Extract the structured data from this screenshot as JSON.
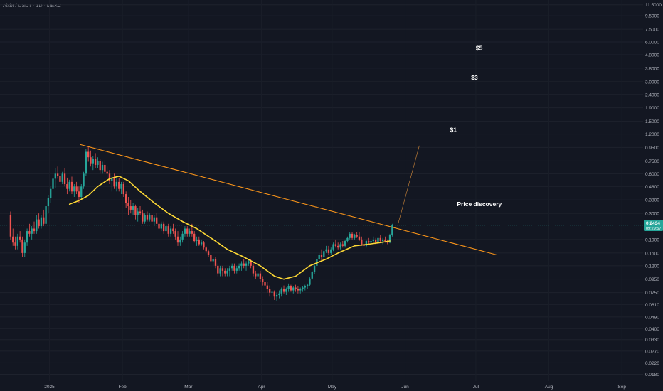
{
  "header": {
    "symbol_line": "Aixbt / USDT · 1D · MEXC"
  },
  "colors": {
    "background": "#131722",
    "up": "#26a69a",
    "down": "#ef5350",
    "trendline": "#f7931a",
    "moving_average": "#fdd835",
    "axis_text": "#b2b5be",
    "price_badge": "#26a69a"
  },
  "price_badge": {
    "price": "0.2434",
    "countdown": "09:29:57"
  },
  "chart_data": {
    "type": "candlestick",
    "y_scale": "log",
    "y_ticks": [
      "11.5000",
      "9.5000",
      "7.5000",
      "6.0000",
      "4.8000",
      "3.8000",
      "3.0000",
      "2.4000",
      "1.9000",
      "1.5000",
      "1.2000",
      "0.9500",
      "0.7500",
      "0.6000",
      "0.4800",
      "0.3800",
      "0.3000",
      "0.1900",
      "0.1500",
      "0.1200",
      "0.0950",
      "0.0750",
      "0.0610",
      "0.0490",
      "0.0400",
      "0.0330",
      "0.0270",
      "0.0220",
      "0.0180"
    ],
    "x_ticks": [
      "2025",
      "Feb",
      "Mar",
      "Apr",
      "May",
      "Jun",
      "Jul",
      "Aug",
      "Sep"
    ],
    "x_range": [
      "2024-12-11",
      "2025-09-10"
    ],
    "y_range": [
      0.016,
      12.5
    ],
    "last_price": 0.2434,
    "annotations": [
      {
        "text": "$5",
        "x": "2025-07-01",
        "y": 5.2
      },
      {
        "text": "$3",
        "x": "2025-06-29",
        "y": 3.1
      },
      {
        "text": "$1",
        "x": "2025-06-20",
        "y": 1.25
      },
      {
        "text": "Price discovery",
        "x": "2025-06-23",
        "y": 0.34
      }
    ],
    "trendline": {
      "start": {
        "x": "2025-01-14",
        "y": 1.0
      },
      "end": {
        "x": "2025-07-10",
        "y": 0.145
      }
    },
    "projection_line": {
      "start": {
        "x": "2025-05-29",
        "y": 0.25
      },
      "end": {
        "x": "2025-06-07",
        "y": 0.98
      }
    },
    "moving_average": [
      [
        "2025-01-09",
        0.352
      ],
      [
        "2025-01-13",
        0.375
      ],
      [
        "2025-01-17",
        0.41
      ],
      [
        "2025-01-21",
        0.48
      ],
      [
        "2025-01-26",
        0.55
      ],
      [
        "2025-01-30",
        0.575
      ],
      [
        "2025-02-03",
        0.53
      ],
      [
        "2025-02-08",
        0.44
      ],
      [
        "2025-02-14",
        0.36
      ],
      [
        "2025-02-20",
        0.3
      ],
      [
        "2025-02-26",
        0.26
      ],
      [
        "2025-03-04",
        0.23
      ],
      [
        "2025-03-11",
        0.19
      ],
      [
        "2025-03-17",
        0.16
      ],
      [
        "2025-03-24",
        0.14
      ],
      [
        "2025-03-31",
        0.12
      ],
      [
        "2025-04-06",
        0.1
      ],
      [
        "2025-04-10",
        0.095
      ],
      [
        "2025-04-15",
        0.1
      ],
      [
        "2025-04-21",
        0.12
      ],
      [
        "2025-04-28",
        0.135
      ],
      [
        "2025-05-03",
        0.15
      ],
      [
        "2025-05-10",
        0.17
      ],
      [
        "2025-05-16",
        0.175
      ],
      [
        "2025-05-21",
        0.18
      ],
      [
        "2025-05-25",
        0.185
      ]
    ],
    "candles": [
      [
        "2024-12-15",
        0.29,
        0.31,
        0.19,
        0.2
      ],
      [
        "2024-12-16",
        0.2,
        0.23,
        0.17,
        0.18
      ],
      [
        "2024-12-17",
        0.18,
        0.2,
        0.16,
        0.17
      ],
      [
        "2024-12-18",
        0.17,
        0.21,
        0.16,
        0.2
      ],
      [
        "2024-12-19",
        0.2,
        0.22,
        0.18,
        0.19
      ],
      [
        "2024-12-20",
        0.19,
        0.2,
        0.14,
        0.15
      ],
      [
        "2024-12-21",
        0.15,
        0.19,
        0.14,
        0.18
      ],
      [
        "2024-12-22",
        0.18,
        0.23,
        0.17,
        0.22
      ],
      [
        "2024-12-23",
        0.22,
        0.25,
        0.2,
        0.21
      ],
      [
        "2024-12-24",
        0.21,
        0.24,
        0.19,
        0.23
      ],
      [
        "2024-12-25",
        0.23,
        0.26,
        0.21,
        0.22
      ],
      [
        "2024-12-26",
        0.22,
        0.29,
        0.21,
        0.27
      ],
      [
        "2024-12-27",
        0.27,
        0.3,
        0.23,
        0.24
      ],
      [
        "2024-12-28",
        0.24,
        0.29,
        0.23,
        0.28
      ],
      [
        "2024-12-29",
        0.28,
        0.32,
        0.24,
        0.25
      ],
      [
        "2024-12-30",
        0.25,
        0.36,
        0.24,
        0.34
      ],
      [
        "2024-12-31",
        0.34,
        0.41,
        0.3,
        0.39
      ],
      [
        "2025-01-01",
        0.39,
        0.48,
        0.36,
        0.46
      ],
      [
        "2025-01-02",
        0.46,
        0.58,
        0.42,
        0.55
      ],
      [
        "2025-01-03",
        0.55,
        0.66,
        0.47,
        0.6
      ],
      [
        "2025-01-04",
        0.6,
        0.68,
        0.55,
        0.58
      ],
      [
        "2025-01-05",
        0.58,
        0.64,
        0.5,
        0.52
      ],
      [
        "2025-01-06",
        0.52,
        0.62,
        0.5,
        0.6
      ],
      [
        "2025-01-07",
        0.6,
        0.66,
        0.48,
        0.5
      ],
      [
        "2025-01-08",
        0.5,
        0.56,
        0.42,
        0.46
      ],
      [
        "2025-01-09",
        0.46,
        0.54,
        0.44,
        0.52
      ],
      [
        "2025-01-10",
        0.52,
        0.57,
        0.42,
        0.44
      ],
      [
        "2025-01-11",
        0.44,
        0.5,
        0.4,
        0.48
      ],
      [
        "2025-01-12",
        0.48,
        0.52,
        0.42,
        0.44
      ],
      [
        "2025-01-13",
        0.44,
        0.48,
        0.36,
        0.4
      ],
      [
        "2025-01-14",
        0.4,
        0.5,
        0.38,
        0.48
      ],
      [
        "2025-01-15",
        0.48,
        0.62,
        0.46,
        0.6
      ],
      [
        "2025-01-16",
        0.6,
        0.92,
        0.58,
        0.88
      ],
      [
        "2025-01-17",
        0.88,
        0.97,
        0.74,
        0.8
      ],
      [
        "2025-01-18",
        0.8,
        0.9,
        0.68,
        0.72
      ],
      [
        "2025-01-19",
        0.72,
        0.82,
        0.64,
        0.78
      ],
      [
        "2025-01-20",
        0.78,
        0.86,
        0.66,
        0.7
      ],
      [
        "2025-01-21",
        0.7,
        0.8,
        0.66,
        0.75
      ],
      [
        "2025-01-22",
        0.75,
        0.78,
        0.6,
        0.64
      ],
      [
        "2025-01-23",
        0.64,
        0.74,
        0.6,
        0.7
      ],
      [
        "2025-01-24",
        0.7,
        0.76,
        0.6,
        0.62
      ],
      [
        "2025-01-25",
        0.62,
        0.68,
        0.56,
        0.6
      ],
      [
        "2025-01-26",
        0.6,
        0.64,
        0.5,
        0.53
      ],
      [
        "2025-01-27",
        0.53,
        0.58,
        0.44,
        0.56
      ],
      [
        "2025-01-28",
        0.56,
        0.6,
        0.46,
        0.48
      ],
      [
        "2025-01-29",
        0.48,
        0.55,
        0.44,
        0.52
      ],
      [
        "2025-01-30",
        0.52,
        0.56,
        0.44,
        0.46
      ],
      [
        "2025-01-31",
        0.46,
        0.52,
        0.42,
        0.5
      ],
      [
        "2025-02-01",
        0.5,
        0.52,
        0.4,
        0.42
      ],
      [
        "2025-02-02",
        0.42,
        0.44,
        0.33,
        0.36
      ],
      [
        "2025-02-03",
        0.36,
        0.4,
        0.29,
        0.34
      ],
      [
        "2025-02-04",
        0.34,
        0.38,
        0.3,
        0.32
      ],
      [
        "2025-02-05",
        0.32,
        0.36,
        0.29,
        0.34
      ],
      [
        "2025-02-06",
        0.34,
        0.35,
        0.27,
        0.29
      ],
      [
        "2025-02-07",
        0.29,
        0.33,
        0.26,
        0.31
      ],
      [
        "2025-02-08",
        0.31,
        0.34,
        0.29,
        0.3
      ],
      [
        "2025-02-09",
        0.3,
        0.32,
        0.25,
        0.26
      ],
      [
        "2025-02-10",
        0.26,
        0.3,
        0.25,
        0.29
      ],
      [
        "2025-02-11",
        0.29,
        0.31,
        0.26,
        0.27
      ],
      [
        "2025-02-12",
        0.27,
        0.3,
        0.26,
        0.29
      ],
      [
        "2025-02-13",
        0.29,
        0.31,
        0.25,
        0.26
      ],
      [
        "2025-02-14",
        0.26,
        0.29,
        0.24,
        0.28
      ],
      [
        "2025-02-15",
        0.28,
        0.3,
        0.25,
        0.25
      ],
      [
        "2025-02-16",
        0.25,
        0.27,
        0.22,
        0.23
      ],
      [
        "2025-02-17",
        0.23,
        0.26,
        0.22,
        0.25
      ],
      [
        "2025-02-18",
        0.25,
        0.26,
        0.21,
        0.22
      ],
      [
        "2025-02-19",
        0.22,
        0.25,
        0.21,
        0.24
      ],
      [
        "2025-02-20",
        0.24,
        0.25,
        0.2,
        0.21
      ],
      [
        "2025-02-21",
        0.21,
        0.24,
        0.2,
        0.23
      ],
      [
        "2025-02-22",
        0.23,
        0.25,
        0.21,
        0.22
      ],
      [
        "2025-02-23",
        0.22,
        0.23,
        0.19,
        0.2
      ],
      [
        "2025-02-24",
        0.2,
        0.22,
        0.17,
        0.18
      ],
      [
        "2025-02-25",
        0.18,
        0.2,
        0.17,
        0.19
      ],
      [
        "2025-02-26",
        0.19,
        0.22,
        0.18,
        0.21
      ],
      [
        "2025-02-27",
        0.21,
        0.24,
        0.2,
        0.23
      ],
      [
        "2025-02-28",
        0.23,
        0.24,
        0.2,
        0.21
      ],
      [
        "2025-03-01",
        0.21,
        0.23,
        0.2,
        0.22
      ],
      [
        "2025-03-02",
        0.22,
        0.25,
        0.2,
        0.21
      ],
      [
        "2025-03-03",
        0.21,
        0.22,
        0.18,
        0.185
      ],
      [
        "2025-03-04",
        0.185,
        0.2,
        0.17,
        0.19
      ],
      [
        "2025-03-05",
        0.19,
        0.2,
        0.17,
        0.175
      ],
      [
        "2025-03-06",
        0.175,
        0.19,
        0.17,
        0.18
      ],
      [
        "2025-03-07",
        0.18,
        0.185,
        0.16,
        0.165
      ],
      [
        "2025-03-08",
        0.165,
        0.17,
        0.15,
        0.155
      ],
      [
        "2025-03-09",
        0.155,
        0.16,
        0.14,
        0.145
      ],
      [
        "2025-03-10",
        0.145,
        0.15,
        0.125,
        0.13
      ],
      [
        "2025-03-11",
        0.13,
        0.14,
        0.12,
        0.135
      ],
      [
        "2025-03-12",
        0.135,
        0.14,
        0.115,
        0.12
      ],
      [
        "2025-03-13",
        0.12,
        0.125,
        0.1,
        0.105
      ],
      [
        "2025-03-14",
        0.105,
        0.12,
        0.1,
        0.115
      ],
      [
        "2025-03-15",
        0.115,
        0.12,
        0.1,
        0.11
      ],
      [
        "2025-03-16",
        0.11,
        0.115,
        0.1,
        0.105
      ],
      [
        "2025-03-17",
        0.105,
        0.115,
        0.1,
        0.11
      ],
      [
        "2025-03-18",
        0.11,
        0.12,
        0.1,
        0.115
      ],
      [
        "2025-03-19",
        0.115,
        0.125,
        0.11,
        0.12
      ],
      [
        "2025-03-20",
        0.12,
        0.125,
        0.105,
        0.11
      ],
      [
        "2025-03-21",
        0.11,
        0.12,
        0.105,
        0.115
      ],
      [
        "2025-03-22",
        0.115,
        0.125,
        0.11,
        0.12
      ],
      [
        "2025-03-23",
        0.12,
        0.13,
        0.11,
        0.125
      ],
      [
        "2025-03-24",
        0.125,
        0.135,
        0.115,
        0.12
      ],
      [
        "2025-03-25",
        0.12,
        0.13,
        0.11,
        0.125
      ],
      [
        "2025-03-26",
        0.125,
        0.135,
        0.12,
        0.13
      ],
      [
        "2025-03-27",
        0.13,
        0.135,
        0.115,
        0.12
      ],
      [
        "2025-03-28",
        0.12,
        0.125,
        0.1,
        0.105
      ],
      [
        "2025-03-29",
        0.105,
        0.11,
        0.095,
        0.1
      ],
      [
        "2025-03-30",
        0.1,
        0.11,
        0.095,
        0.105
      ],
      [
        "2025-03-31",
        0.105,
        0.11,
        0.09,
        0.095
      ],
      [
        "2025-04-01",
        0.095,
        0.1,
        0.085,
        0.09
      ],
      [
        "2025-04-02",
        0.09,
        0.095,
        0.08,
        0.085
      ],
      [
        "2025-04-03",
        0.085,
        0.09,
        0.075,
        0.08
      ],
      [
        "2025-04-04",
        0.08,
        0.085,
        0.07,
        0.075
      ],
      [
        "2025-04-05",
        0.075,
        0.08,
        0.07,
        0.076
      ],
      [
        "2025-04-06",
        0.076,
        0.078,
        0.066,
        0.07
      ],
      [
        "2025-04-07",
        0.07,
        0.075,
        0.065,
        0.072
      ],
      [
        "2025-04-08",
        0.072,
        0.078,
        0.068,
        0.074
      ],
      [
        "2025-04-09",
        0.074,
        0.082,
        0.07,
        0.08
      ],
      [
        "2025-04-10",
        0.08,
        0.085,
        0.074,
        0.076
      ],
      [
        "2025-04-11",
        0.076,
        0.082,
        0.072,
        0.08
      ],
      [
        "2025-04-12",
        0.08,
        0.088,
        0.076,
        0.084
      ],
      [
        "2025-04-13",
        0.084,
        0.086,
        0.076,
        0.078
      ],
      [
        "2025-04-14",
        0.078,
        0.084,
        0.074,
        0.082
      ],
      [
        "2025-04-15",
        0.082,
        0.086,
        0.076,
        0.08
      ],
      [
        "2025-04-16",
        0.08,
        0.084,
        0.074,
        0.078
      ],
      [
        "2025-04-17",
        0.078,
        0.082,
        0.074,
        0.08
      ],
      [
        "2025-04-18",
        0.08,
        0.084,
        0.076,
        0.082
      ],
      [
        "2025-04-19",
        0.082,
        0.086,
        0.078,
        0.084
      ],
      [
        "2025-04-20",
        0.084,
        0.088,
        0.08,
        0.086
      ],
      [
        "2025-04-21",
        0.086,
        0.098,
        0.084,
        0.096
      ],
      [
        "2025-04-22",
        0.096,
        0.11,
        0.094,
        0.108
      ],
      [
        "2025-04-23",
        0.108,
        0.125,
        0.104,
        0.12
      ],
      [
        "2025-04-24",
        0.12,
        0.14,
        0.115,
        0.135
      ],
      [
        "2025-04-25",
        0.135,
        0.15,
        0.125,
        0.145
      ],
      [
        "2025-04-26",
        0.145,
        0.16,
        0.13,
        0.14
      ],
      [
        "2025-04-27",
        0.14,
        0.16,
        0.135,
        0.155
      ],
      [
        "2025-04-28",
        0.155,
        0.17,
        0.15,
        0.16
      ],
      [
        "2025-04-29",
        0.16,
        0.17,
        0.145,
        0.15
      ],
      [
        "2025-04-30",
        0.15,
        0.165,
        0.145,
        0.16
      ],
      [
        "2025-05-01",
        0.16,
        0.18,
        0.155,
        0.175
      ],
      [
        "2025-05-02",
        0.175,
        0.19,
        0.165,
        0.17
      ],
      [
        "2025-05-03",
        0.17,
        0.18,
        0.16,
        0.165
      ],
      [
        "2025-05-04",
        0.165,
        0.18,
        0.16,
        0.175
      ],
      [
        "2025-05-05",
        0.175,
        0.185,
        0.165,
        0.17
      ],
      [
        "2025-05-06",
        0.17,
        0.19,
        0.165,
        0.185
      ],
      [
        "2025-05-07",
        0.185,
        0.2,
        0.18,
        0.195
      ],
      [
        "2025-05-08",
        0.195,
        0.215,
        0.19,
        0.21
      ],
      [
        "2025-05-09",
        0.21,
        0.215,
        0.19,
        0.195
      ],
      [
        "2025-05-10",
        0.195,
        0.21,
        0.19,
        0.205
      ],
      [
        "2025-05-11",
        0.205,
        0.215,
        0.195,
        0.2
      ],
      [
        "2025-05-12",
        0.2,
        0.215,
        0.185,
        0.19
      ],
      [
        "2025-05-13",
        0.19,
        0.2,
        0.17,
        0.175
      ],
      [
        "2025-05-14",
        0.175,
        0.185,
        0.165,
        0.17
      ],
      [
        "2025-05-15",
        0.17,
        0.19,
        0.165,
        0.185
      ],
      [
        "2025-05-16",
        0.185,
        0.195,
        0.175,
        0.18
      ],
      [
        "2025-05-17",
        0.18,
        0.19,
        0.17,
        0.185
      ],
      [
        "2025-05-18",
        0.185,
        0.2,
        0.18,
        0.19
      ],
      [
        "2025-05-19",
        0.19,
        0.195,
        0.175,
        0.18
      ],
      [
        "2025-05-20",
        0.18,
        0.2,
        0.175,
        0.195
      ],
      [
        "2025-05-21",
        0.195,
        0.205,
        0.18,
        0.185
      ],
      [
        "2025-05-22",
        0.185,
        0.195,
        0.175,
        0.19
      ],
      [
        "2025-05-23",
        0.19,
        0.2,
        0.18,
        0.185
      ],
      [
        "2025-05-24",
        0.185,
        0.19,
        0.175,
        0.18
      ],
      [
        "2025-05-25",
        0.18,
        0.21,
        0.178,
        0.205
      ],
      [
        "2025-05-26",
        0.205,
        0.25,
        0.2,
        0.2434
      ]
    ]
  }
}
